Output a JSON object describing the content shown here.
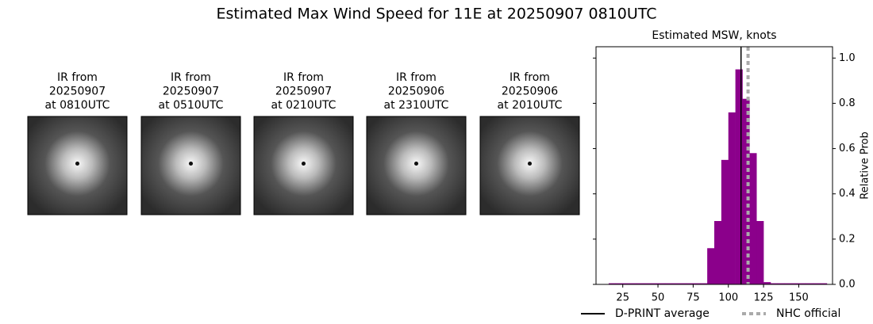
{
  "title": "Estimated Max Wind Speed for 11E at 20250907 0810UTC",
  "panels": [
    {
      "lines": [
        "IR from",
        "20250907",
        "at 0810UTC"
      ]
    },
    {
      "lines": [
        "IR from",
        "20250907",
        "at 0510UTC"
      ]
    },
    {
      "lines": [
        "IR from",
        "20250907",
        "at 0210UTC"
      ]
    },
    {
      "lines": [
        "IR from",
        "20250906",
        "at 2310UTC"
      ]
    },
    {
      "lines": [
        "IR from",
        "20250906",
        "at 2010UTC"
      ]
    }
  ],
  "chart_data": {
    "type": "histogram",
    "title": "Estimated MSW, knots",
    "y2_label": "Relative Prob",
    "color": "#8b008b",
    "bins": [
      15,
      20,
      25,
      30,
      35,
      40,
      45,
      50,
      55,
      60,
      65,
      70,
      75,
      80,
      85,
      90,
      95,
      100,
      105,
      110,
      115,
      120,
      125,
      130,
      135,
      140,
      145,
      150,
      155,
      160,
      165,
      170
    ],
    "values": [
      0.005,
      0.005,
      0.005,
      0.005,
      0.005,
      0.005,
      0.005,
      0.005,
      0.005,
      0.005,
      0.005,
      0.005,
      0.005,
      0.005,
      0.16,
      0.28,
      0.55,
      0.76,
      0.95,
      0.82,
      0.58,
      0.28,
      0.01,
      0.005,
      0.005,
      0.005,
      0.005,
      0.005,
      0.005,
      0.005,
      0.005
    ],
    "xlim": [
      6,
      174
    ],
    "xticks": [
      25,
      50,
      75,
      100,
      125,
      150
    ],
    "y2lim": [
      0,
      1.05
    ],
    "y2ticks": [
      {
        "value": 0,
        "label": "0.0"
      },
      {
        "value": 0.2,
        "label": "0.2"
      },
      {
        "value": 0.4,
        "label": "0.4"
      },
      {
        "value": 0.6,
        "label": "0.6"
      },
      {
        "value": 0.8,
        "label": "0.8"
      },
      {
        "value": 1,
        "label": "1.0"
      }
    ],
    "lines": [
      {
        "name": "D-PRINT average",
        "value": 109,
        "color": "#000000",
        "style": "solid"
      },
      {
        "name": "NHC official",
        "value": 114,
        "color": "#aaaaaa",
        "style": "dotted"
      }
    ],
    "legend": "bottom"
  }
}
